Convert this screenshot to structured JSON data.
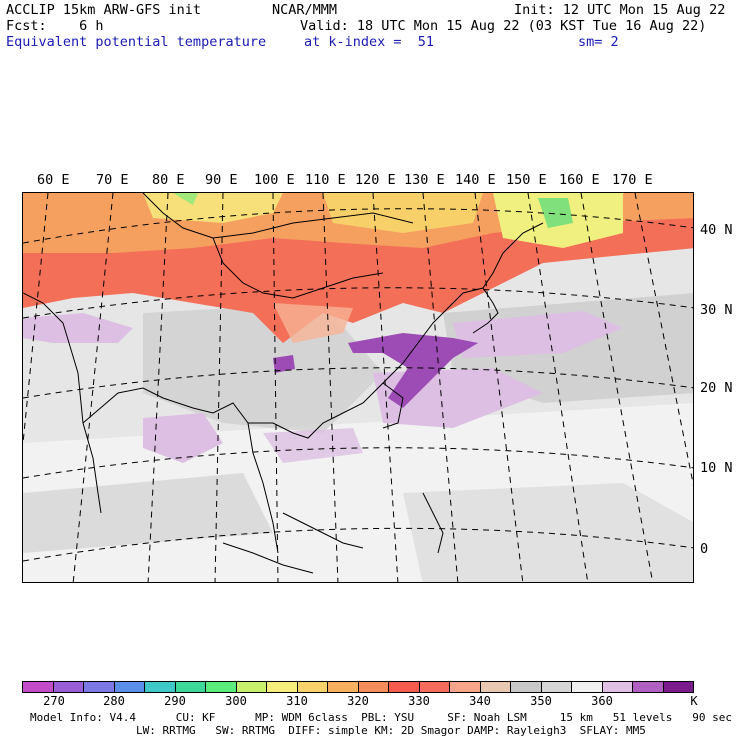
{
  "header": {
    "line1_left": "ACCLIP 15km ARW-GFS init",
    "line1_mid": "NCAR/MMM",
    "line1_right": "Init: 12 UTC Mon 15 Aug 22",
    "line2_left": "Fcst:    6 h",
    "line2_right": "Valid: 18 UTC Mon 15 Aug 22 (03 KST Tue 16 Aug 22)",
    "line3_left": "Equivalent potential temperature",
    "line3_mid": "at k-index =  51",
    "line3_right": "sm= 2"
  },
  "map": {
    "lon_labels": [
      "60 E",
      "70 E",
      "80 E",
      "90 E",
      "100 E",
      "110 E",
      "120 E",
      "130 E",
      "140 E",
      "150 E",
      "160 E",
      "170 E"
    ],
    "lat_labels": [
      "40 N",
      "30 N",
      "20 N",
      "10 N",
      "0"
    ]
  },
  "colorbar": {
    "colors": [
      "#c44cc8",
      "#9a5ed6",
      "#7c78e4",
      "#5a8ee8",
      "#3ec8c8",
      "#3ed89a",
      "#5cec7c",
      "#c8f06c",
      "#f6ee7c",
      "#f8d26a",
      "#f6b060",
      "#f48c5c",
      "#f45c50",
      "#f46c5c",
      "#f6a48a",
      "#e8c8b0",
      "#c8c8c8",
      "#d6d6d6",
      "#f0f0f0",
      "#e0c0e4",
      "#b060c0",
      "#7c1c8c"
    ],
    "ticks": [
      "270",
      "280",
      "290",
      "300",
      "310",
      "320",
      "330",
      "340",
      "350",
      "360"
    ],
    "unit": "K"
  },
  "footer": {
    "line1": "Model Info: V4.4      CU: KF      MP: WDM 6class  PBL: YSU     SF: Noah LSM     15 km   51 levels   90 sec",
    "line2": "                LW: RRTMG   SW: RRTMG  DIFF: simple KM: 2D Smagor DAMP: Rayleigh3  SFLAY: MM5"
  }
}
